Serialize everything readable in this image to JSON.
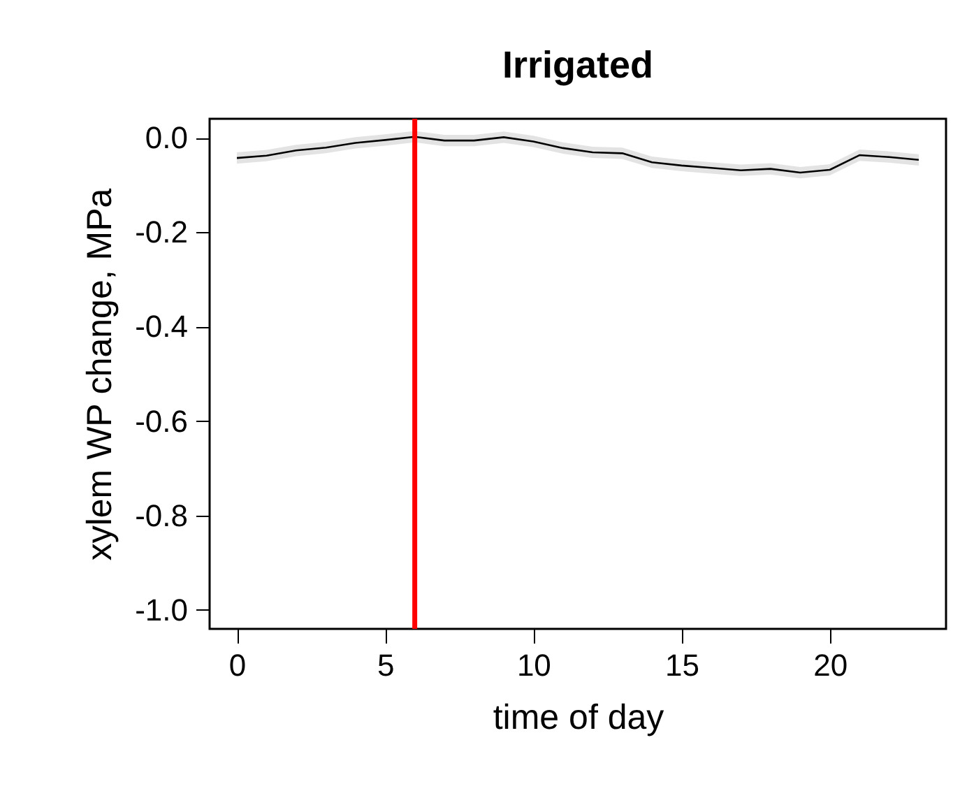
{
  "chart_data": {
    "type": "line",
    "title": "Irrigated",
    "xlabel": "time of day",
    "ylabel": "xylem WP change, MPa",
    "x": [
      0,
      1,
      2,
      3,
      4,
      5,
      6,
      7,
      8,
      9,
      10,
      11,
      12,
      13,
      14,
      15,
      16,
      17,
      18,
      19,
      20,
      21,
      22,
      23
    ],
    "series": [
      {
        "color": "#000000",
        "values": [
          -0.043,
          -0.038,
          -0.027,
          -0.021,
          -0.011,
          -0.005,
          0.002,
          -0.006,
          -0.006,
          0.001,
          -0.008,
          -0.022,
          -0.031,
          -0.033,
          -0.052,
          -0.059,
          -0.064,
          -0.069,
          -0.066,
          -0.074,
          -0.068,
          -0.037,
          -0.041,
          -0.047
        ],
        "lower": [
          -0.055,
          -0.05,
          -0.039,
          -0.033,
          -0.023,
          -0.017,
          -0.01,
          -0.018,
          -0.018,
          -0.011,
          -0.02,
          -0.034,
          -0.043,
          -0.045,
          -0.064,
          -0.071,
          -0.076,
          -0.081,
          -0.078,
          -0.086,
          -0.08,
          -0.049,
          -0.053,
          -0.059
        ],
        "upper": [
          -0.031,
          -0.026,
          -0.015,
          -0.009,
          0.001,
          0.007,
          0.014,
          0.006,
          0.006,
          0.013,
          0.004,
          -0.01,
          -0.019,
          -0.021,
          -0.04,
          -0.047,
          -0.052,
          -0.057,
          -0.054,
          -0.062,
          -0.056,
          -0.025,
          -0.029,
          -0.035
        ]
      }
    ],
    "xlim": [
      -0.92,
      23.92
    ],
    "xticks": [
      0,
      5,
      10,
      15,
      20
    ],
    "ylim": [
      -1.04,
      0.04
    ],
    "yticks": [
      {
        "value": 0,
        "label": "0.0"
      },
      {
        "value": -0.2,
        "label": "-0.2"
      },
      {
        "value": -0.4,
        "label": "-0.4"
      },
      {
        "value": -0.6,
        "label": "-0.6"
      },
      {
        "value": -0.8,
        "label": "-0.8"
      },
      {
        "value": -1,
        "label": "-1.0"
      }
    ],
    "ref_lines": [
      {
        "axis": "x",
        "value": 6,
        "color": "#ff0000"
      }
    ],
    "grid": false
  }
}
